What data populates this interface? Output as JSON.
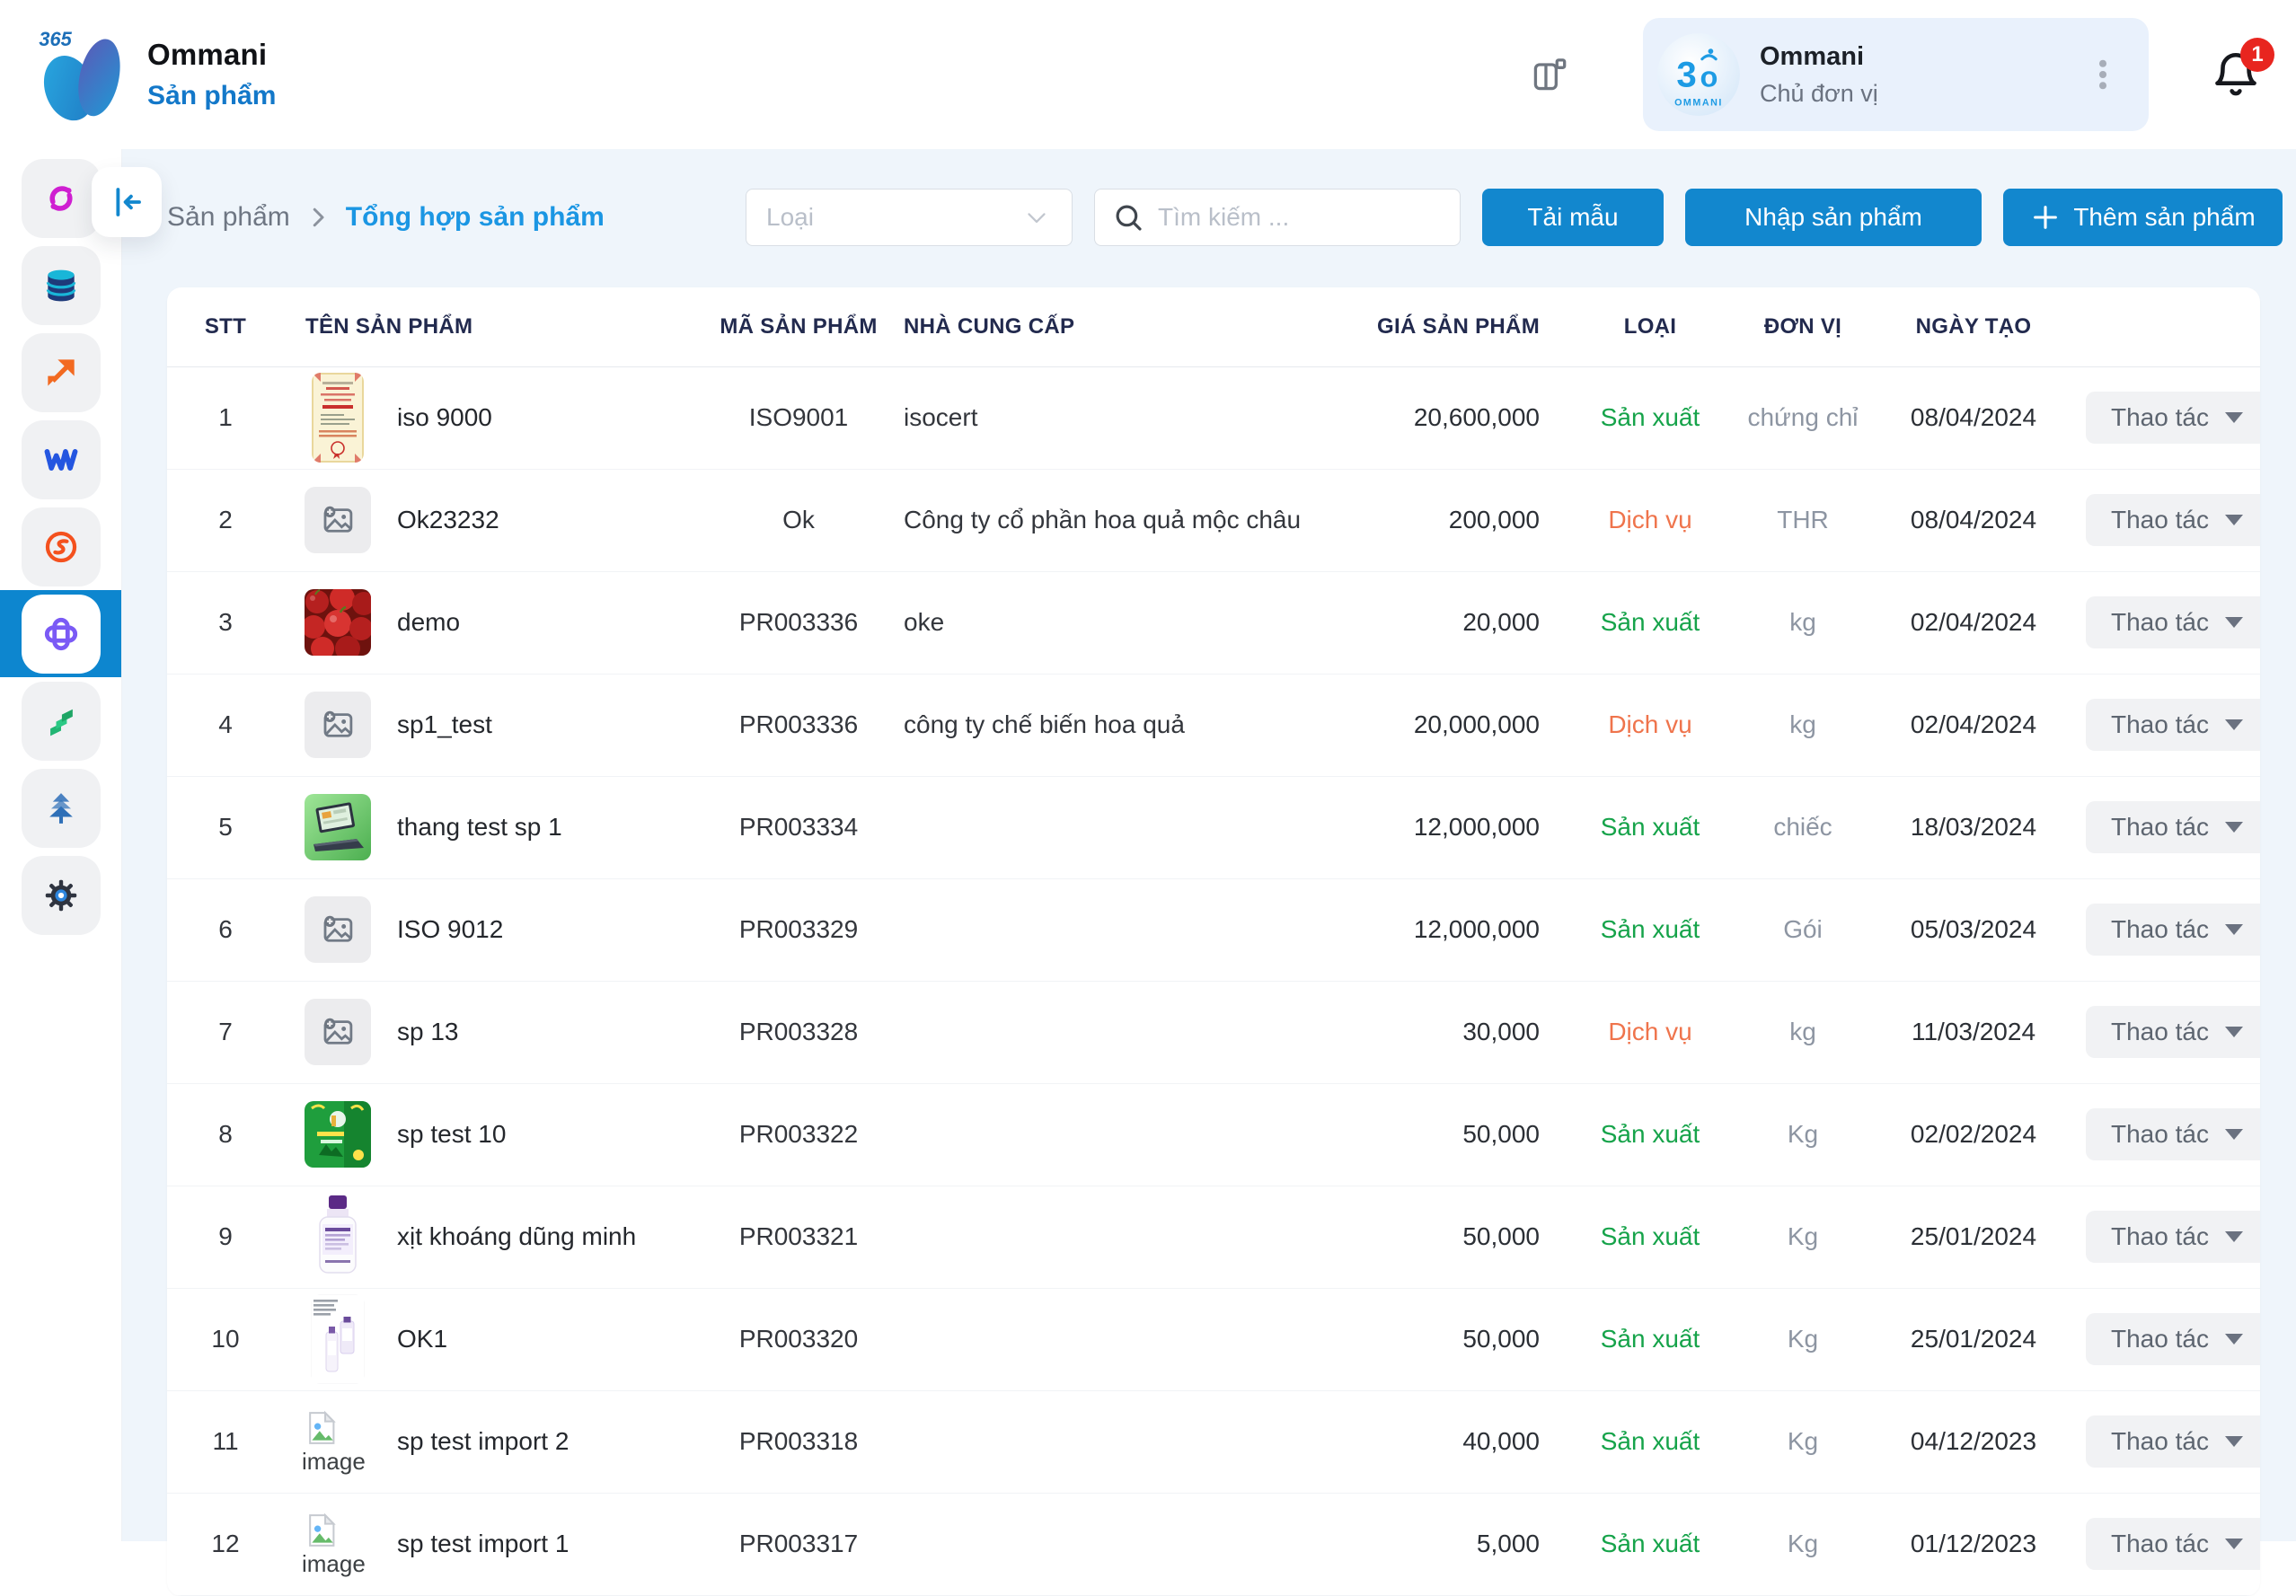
{
  "header": {
    "logo_badge": "365",
    "app_title": "Ommani",
    "app_subtitle": "Sản phẩm",
    "user": {
      "name": "Ommani",
      "role": "Chủ đơn vị",
      "avatar_brand": "OMMANI"
    },
    "notification_count": "1"
  },
  "sidebar": {
    "items": [
      {
        "icon": "magenta-sync",
        "active": false
      },
      {
        "icon": "database",
        "active": false
      },
      {
        "icon": "orange-arrow",
        "active": false
      },
      {
        "icon": "blue-w",
        "active": false
      },
      {
        "icon": "orange-ring",
        "active": false
      },
      {
        "icon": "purple-clover",
        "active": true
      },
      {
        "icon": "green-layers",
        "active": false
      },
      {
        "icon": "blue-tree",
        "active": false
      },
      {
        "icon": "settings-gear",
        "active": false
      }
    ]
  },
  "breadcrumb": {
    "parent": "Sản phẩm",
    "current": "Tổng hợp sản phẩm"
  },
  "toolbar": {
    "type_filter_placeholder": "Loại",
    "search_placeholder": "Tìm kiếm ...",
    "download_template_label": "Tải mẫu",
    "import_label": "Nhập sản phẩm",
    "add_label": "Thêm sản phẩm"
  },
  "table": {
    "columns": [
      "STT",
      "TÊN SẢN PHẨM",
      "MÃ SẢN PHẨM",
      "NHÀ CUNG CẤP",
      "GIÁ SẢN PHẨM",
      "LOẠI",
      "ĐƠN VỊ",
      "NGÀY TẠO"
    ],
    "action_label": "Thao tác",
    "rows": [
      {
        "stt": "1",
        "name": "iso 9000",
        "code": "ISO9001",
        "supplier": "isocert",
        "price": "20,600,000",
        "type": "Sản xuất",
        "type_key": "production",
        "unit": "chứng chỉ",
        "date": "08/04/2024",
        "thumb": "certificate"
      },
      {
        "stt": "2",
        "name": "Ok23232",
        "code": "Ok",
        "supplier": "Công ty cổ phần hoa quả mộc châu",
        "price": "200,000",
        "type": "Dịch vụ",
        "type_key": "service",
        "unit": "THR",
        "date": "08/04/2024",
        "thumb": "placeholder"
      },
      {
        "stt": "3",
        "name": "demo",
        "code": "PR003336",
        "supplier": "oke",
        "price": "20,000",
        "type": "Sản xuất",
        "type_key": "production",
        "unit": "kg",
        "date": "02/04/2024",
        "thumb": "apples"
      },
      {
        "stt": "4",
        "name": "sp1_test",
        "code": "PR003336",
        "supplier": "công ty chế biến hoa quả",
        "price": "20,000,000",
        "type": "Dịch vụ",
        "type_key": "service",
        "unit": "kg",
        "date": "02/04/2024",
        "thumb": "placeholder"
      },
      {
        "stt": "5",
        "name": "thang test sp 1",
        "code": "PR003334",
        "supplier": "",
        "price": "12,000,000",
        "type": "Sản xuất",
        "type_key": "production",
        "unit": "chiếc",
        "date": "18/03/2024",
        "thumb": "laptop"
      },
      {
        "stt": "6",
        "name": "ISO 9012",
        "code": "PR003329",
        "supplier": "",
        "price": "12,000,000",
        "type": "Sản xuất",
        "type_key": "production",
        "unit": "Gói",
        "date": "05/03/2024",
        "thumb": "placeholder"
      },
      {
        "stt": "7",
        "name": "sp 13",
        "code": "PR003328",
        "supplier": "",
        "price": "30,000",
        "type": "Dịch vụ",
        "type_key": "service",
        "unit": "kg",
        "date": "11/03/2024",
        "thumb": "placeholder"
      },
      {
        "stt": "8",
        "name": "sp test 10",
        "code": "PR003322",
        "supplier": "",
        "price": "50,000",
        "type": "Sản xuất",
        "type_key": "production",
        "unit": "Kg",
        "date": "02/02/2024",
        "thumb": "green-promo"
      },
      {
        "stt": "9",
        "name": "xịt khoáng dũng minh",
        "code": "PR003321",
        "supplier": "",
        "price": "50,000",
        "type": "Sản xuất",
        "type_key": "production",
        "unit": "Kg",
        "date": "25/01/2024",
        "thumb": "bottle"
      },
      {
        "stt": "10",
        "name": "OK1",
        "code": "PR003320",
        "supplier": "",
        "price": "50,000",
        "type": "Sản xuất",
        "type_key": "production",
        "unit": "Kg",
        "date": "25/01/2024",
        "thumb": "bottle2"
      },
      {
        "stt": "11",
        "name": "sp test import 2",
        "code": "PR003318",
        "supplier": "",
        "price": "40,000",
        "type": "Sản xuất",
        "type_key": "production",
        "unit": "Kg",
        "date": "04/12/2023",
        "thumb": "broken"
      },
      {
        "stt": "12",
        "name": "sp test import 1",
        "code": "PR003317",
        "supplier": "",
        "price": "5,000",
        "type": "Sản xuất",
        "type_key": "production",
        "unit": "Kg",
        "date": "01/12/2023",
        "thumb": "broken"
      }
    ]
  },
  "colors": {
    "primary_blue": "#1287ce",
    "sidebar_active_blue": "#0d86cf",
    "link_blue": "#1b96e3",
    "production_green": "#16a34a",
    "service_orange": "#ef744c",
    "badge_red": "#e8251f"
  }
}
